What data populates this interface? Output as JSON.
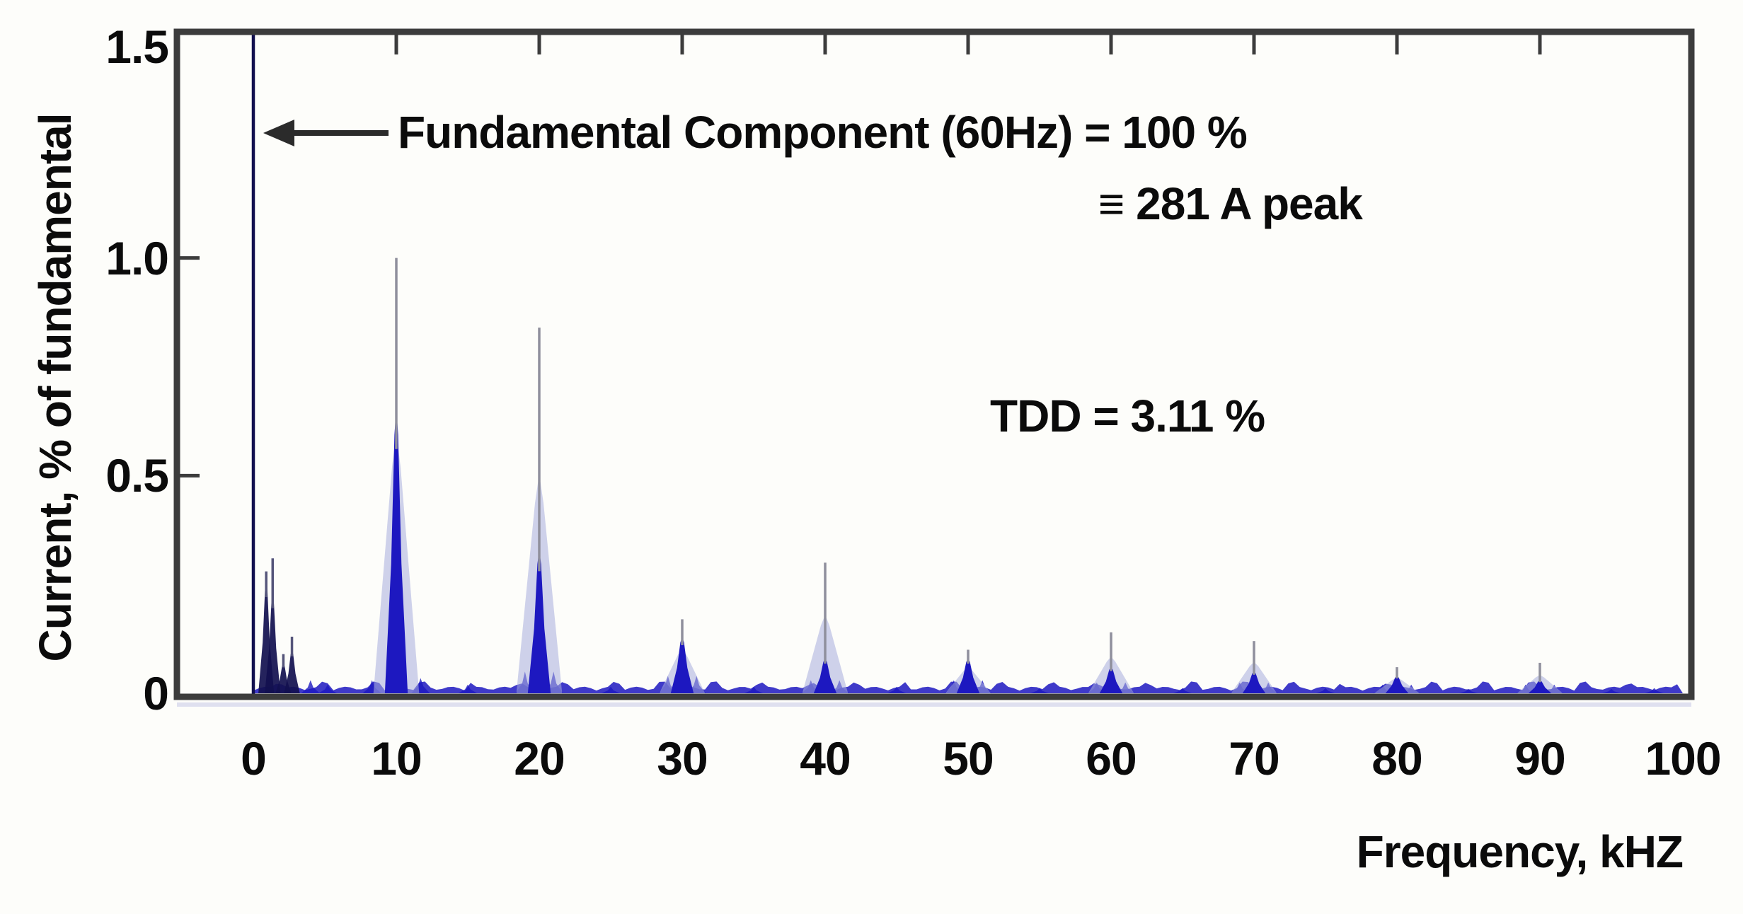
{
  "figure": {
    "background": "#fdfdfa",
    "annotations": {
      "fundamental": "Fundamental Component (60Hz) = 100 %",
      "peak_equiv": "≡ 281 A  peak",
      "tdd": "TDD = 3.11 %"
    },
    "axes": {
      "x_label": "Frequency, kHZ",
      "y_label": "Current, % of fundamental",
      "x_tick_labels": [
        "0",
        "10",
        "20",
        "30",
        "40",
        "50",
        "60",
        "70",
        "80",
        "90",
        "100"
      ],
      "y_tick_labels": [
        "0",
        "0.5",
        "1.0",
        "1.5"
      ]
    },
    "colors": {
      "spectrum_blue": "#1d18c0",
      "spectrum_dark": "#12104f",
      "haze_blue": "#a8addc",
      "needle_gray": "#8f8f9c",
      "axis_gray": "#3c3c3c",
      "text_black": "#0b0b0b",
      "under_axis_band": "#c6c9e6"
    }
  },
  "chart_data": {
    "type": "area",
    "title": "",
    "xlabel": "Frequency, kHZ",
    "ylabel": "Current, % of fundamental",
    "xlim": [
      0,
      100
    ],
    "ylim": [
      0,
      1.5
    ],
    "x_ticks": [
      0,
      10,
      20,
      30,
      40,
      50,
      60,
      70,
      80,
      90,
      100
    ],
    "y_ticks": [
      0,
      0.5,
      1.0,
      1.5
    ],
    "grid": false,
    "legend": false,
    "fundamental": {
      "freq_khz": 0,
      "value_pct": 100,
      "equivalent": "281 A peak",
      "note": "vertical spike clipped at top of axis (1.5)"
    },
    "tdd_pct": 3.11,
    "peaks": [
      {
        "freq_khz": 0.9,
        "peak_pct": 0.28,
        "solid_pct": 0.26
      },
      {
        "freq_khz": 1.35,
        "peak_pct": 0.31,
        "solid_pct": 0.23
      },
      {
        "freq_khz": 2.1,
        "peak_pct": 0.09,
        "solid_pct": 0.07
      },
      {
        "freq_khz": 2.7,
        "peak_pct": 0.13,
        "solid_pct": 0.1
      },
      {
        "freq_khz": 10,
        "peak_pct": 1.0,
        "solid_pct": 0.66
      },
      {
        "freq_khz": 20,
        "peak_pct": 0.84,
        "solid_pct": 0.33
      },
      {
        "freq_khz": 30,
        "peak_pct": 0.17,
        "solid_pct": 0.13
      },
      {
        "freq_khz": 40,
        "peak_pct": 0.3,
        "solid_pct": 0.08
      },
      {
        "freq_khz": 50,
        "peak_pct": 0.1,
        "solid_pct": 0.08
      },
      {
        "freq_khz": 60,
        "peak_pct": 0.14,
        "solid_pct": 0.06
      },
      {
        "freq_khz": 70,
        "peak_pct": 0.12,
        "solid_pct": 0.05
      },
      {
        "freq_khz": 80,
        "peak_pct": 0.06,
        "solid_pct": 0.04
      },
      {
        "freq_khz": 90,
        "peak_pct": 0.07,
        "solid_pct": 0.03
      }
    ],
    "minor_bumps": [
      [
        4,
        0.03
      ],
      [
        5.2,
        0.02
      ],
      [
        8.3,
        0.03
      ],
      [
        11.7,
        0.035
      ],
      [
        15,
        0.02
      ],
      [
        19,
        0.05
      ],
      [
        21,
        0.05
      ],
      [
        25,
        0.015
      ],
      [
        29,
        0.04
      ],
      [
        31,
        0.04
      ],
      [
        35,
        0.015
      ],
      [
        39,
        0.03
      ],
      [
        41,
        0.03
      ],
      [
        45,
        0.015
      ],
      [
        49,
        0.03
      ],
      [
        51,
        0.03
      ],
      [
        55,
        0.012
      ],
      [
        59,
        0.025
      ],
      [
        61,
        0.025
      ],
      [
        65,
        0.012
      ],
      [
        69,
        0.025
      ],
      [
        71,
        0.025
      ],
      [
        75,
        0.012
      ],
      [
        79,
        0.02
      ],
      [
        81,
        0.02
      ],
      [
        85,
        0.01
      ],
      [
        89,
        0.02
      ],
      [
        91,
        0.02
      ],
      [
        95,
        0.01
      ],
      [
        98,
        0.012
      ]
    ],
    "baseline_noise_pct": 0.015
  }
}
